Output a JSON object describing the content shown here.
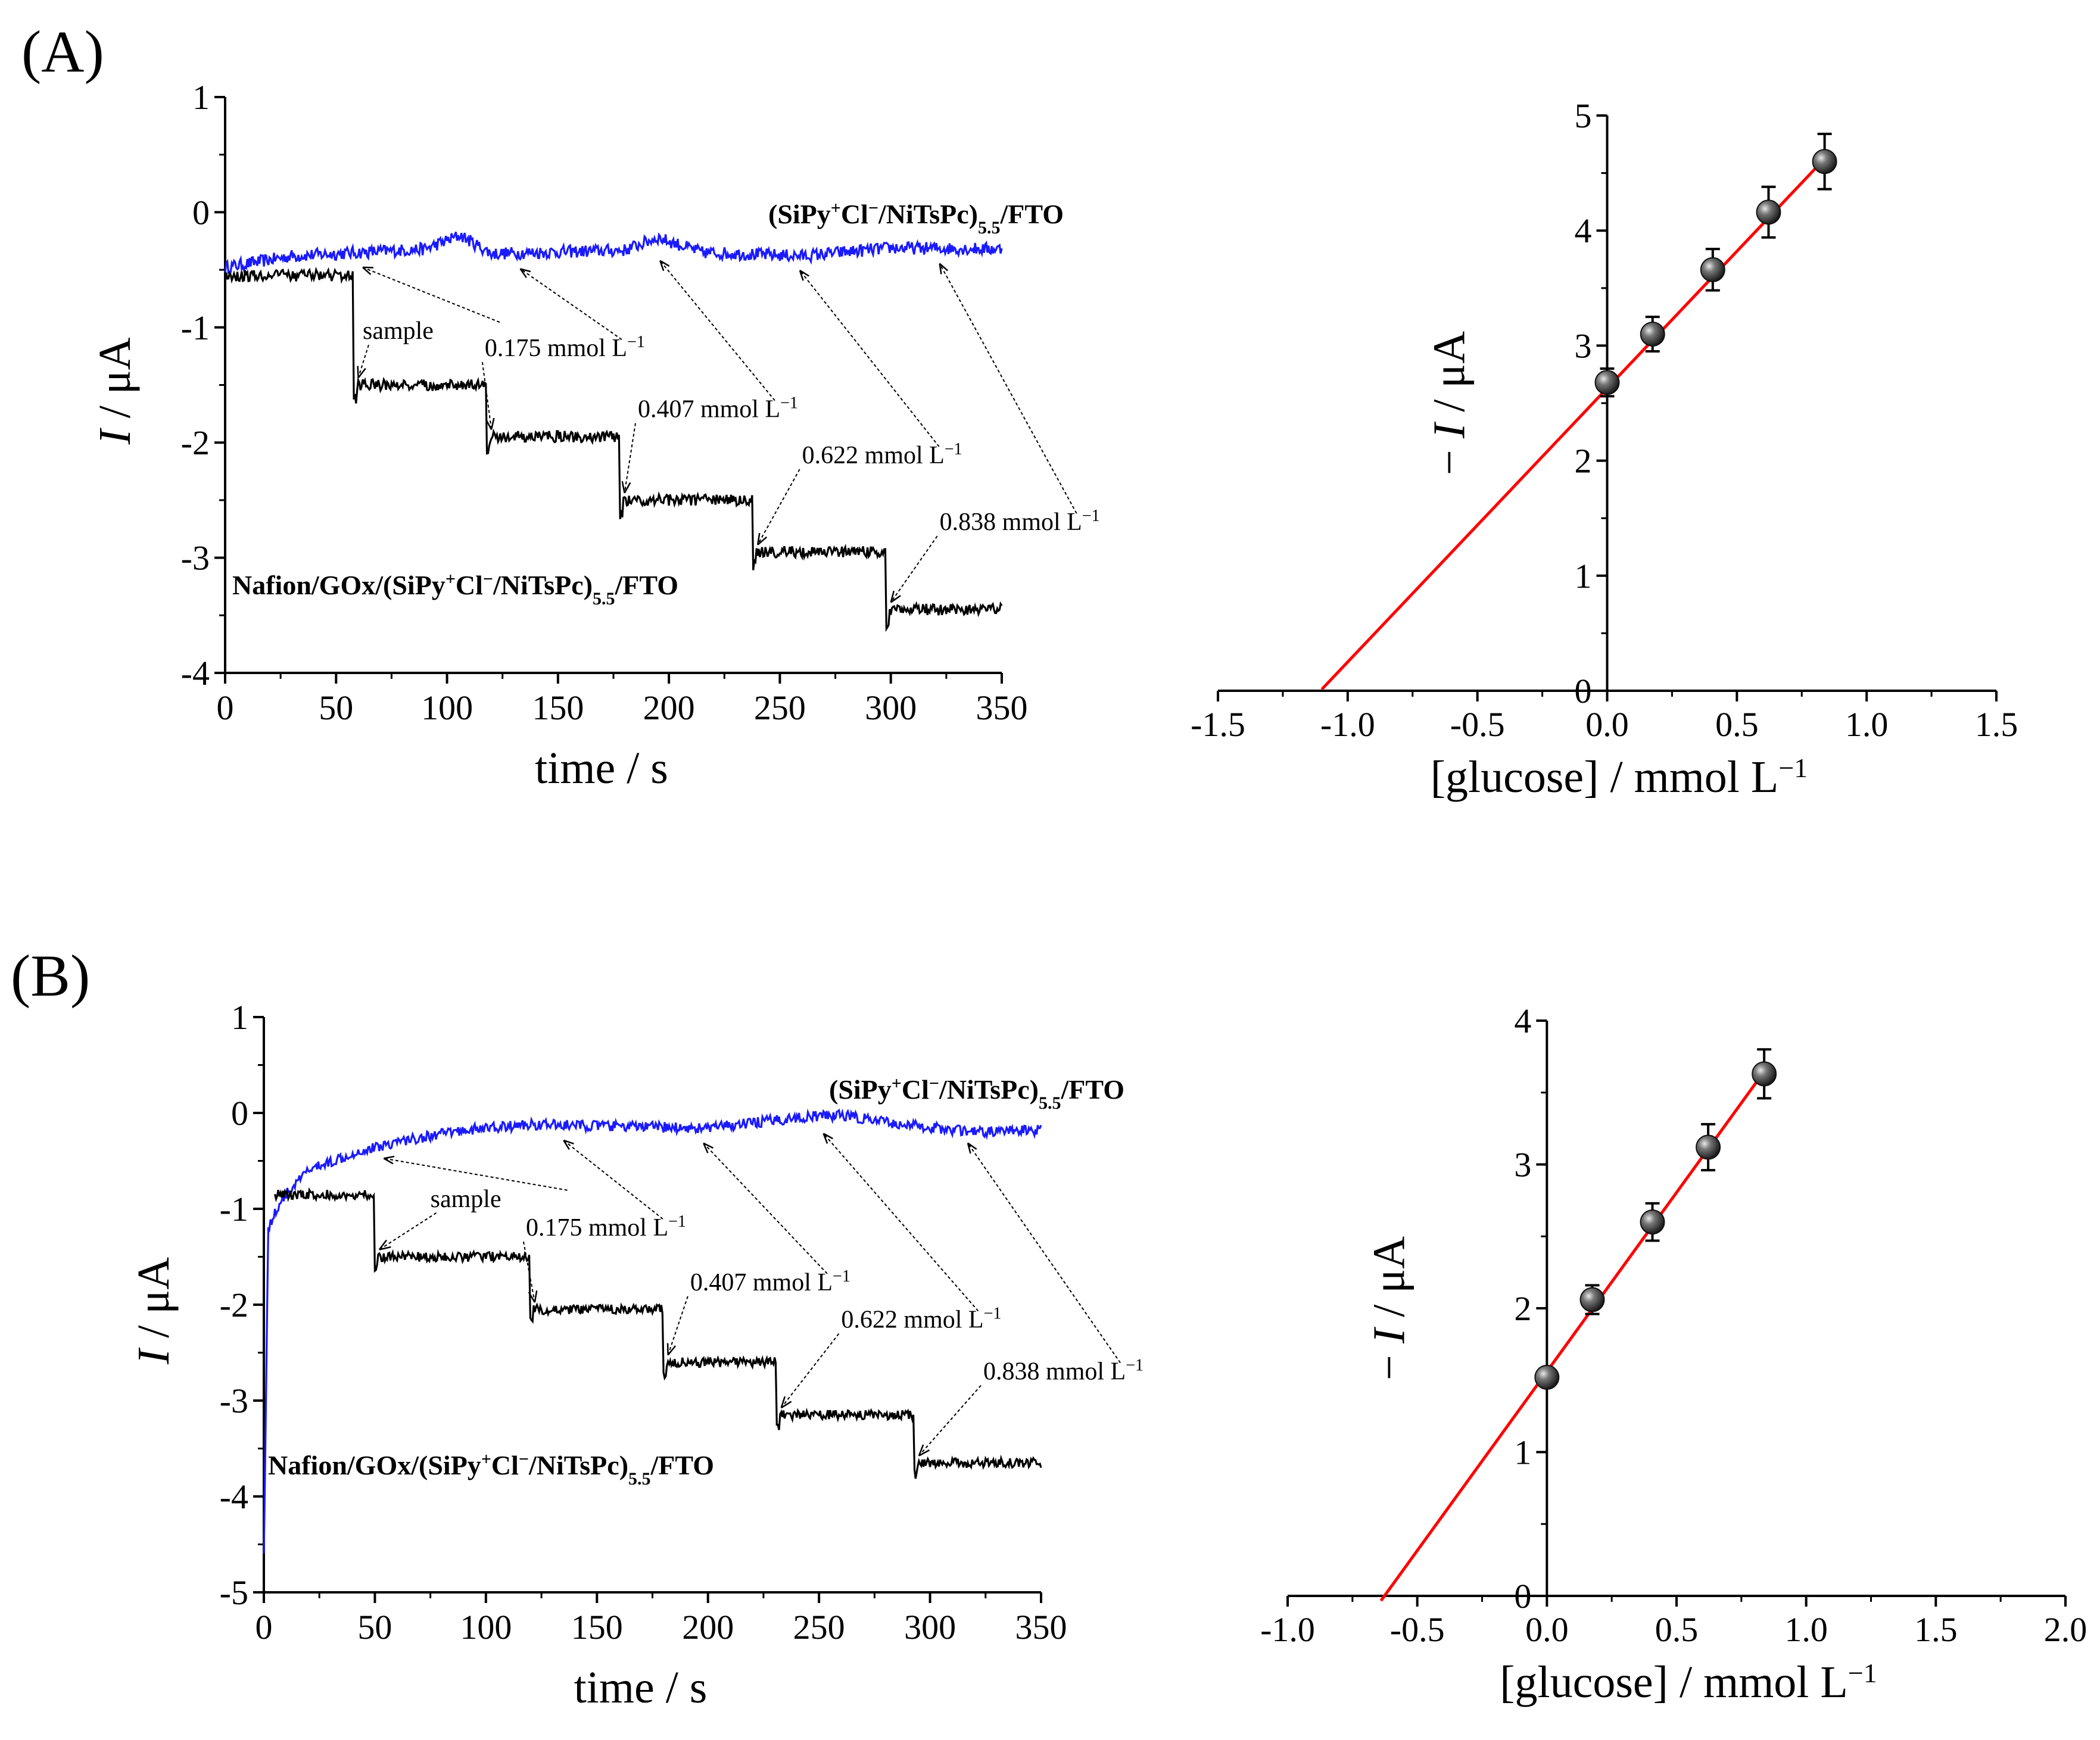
{
  "chart_data": [
    {
      "id": "A_amperometric",
      "panel": "(A)",
      "type": "line",
      "xlabel": "time / s",
      "ylabel": "I / μA",
      "xlim": [
        0,
        350
      ],
      "ylim": [
        -4,
        1
      ],
      "xticks": [
        "0",
        "50",
        "100",
        "150",
        "200",
        "250",
        "300",
        "350"
      ],
      "yticks": [
        "1",
        "0",
        "-1",
        "-2",
        "-3",
        "-4"
      ],
      "series": [
        {
          "name": "(SiPy+Cl−/NiTsPc)5.5/FTO",
          "label_parts": [
            "(SiPy",
            "+",
            "Cl",
            "−",
            "/NiTsPc)",
            "5.5",
            "/FTO"
          ],
          "color": "#1a1aff",
          "baseline": [
            [
              0,
              -0.48
            ],
            [
              30,
              -0.38
            ],
            [
              60,
              -0.35
            ],
            [
              90,
              -0.32
            ],
            [
              106,
              -0.2
            ],
            [
              120,
              -0.36
            ],
            [
              180,
              -0.33
            ],
            [
              195,
              -0.22
            ],
            [
              215,
              -0.35
            ],
            [
              260,
              -0.38
            ],
            [
              300,
              -0.31
            ],
            [
              350,
              -0.32
            ]
          ]
        },
        {
          "name": "Nafion/GOx/(SiPy+Cl−/NiTsPc)5.5/FTO",
          "label_parts": [
            "Nafion/GOx/(SiPy",
            "+",
            "Cl",
            "−",
            "/NiTsPc)",
            "5.5",
            "/FTO"
          ],
          "color": "#000000",
          "steps": [
            [
              0,
              -0.55
            ],
            [
              58,
              -1.5
            ],
            [
              118,
              -1.95
            ],
            [
              178,
              -2.5
            ],
            [
              238,
              -2.95
            ],
            [
              298,
              -3.45
            ],
            [
              350,
              -3.45
            ]
          ]
        }
      ],
      "annotations": [
        {
          "text": "sample",
          "sup": "",
          "x": 62,
          "y": -1.1
        },
        {
          "text": "0.175 mmol L",
          "sup": "−1",
          "x": 117,
          "y": -1.25
        },
        {
          "text": "0.407 mmol L",
          "sup": "−1",
          "x": 186,
          "y": -1.78
        },
        {
          "text": "0.622 mmol L",
          "sup": "−1",
          "x": 260,
          "y": -2.18
        },
        {
          "text": "0.838 mmol L",
          "sup": "−1",
          "x": 322,
          "y": -2.76
        }
      ]
    },
    {
      "id": "A_calibration",
      "type": "scatter",
      "xlabel": "[glucose] / mmol L",
      "xlabel_sup": "−1",
      "ylabel": "− I / μA",
      "xlim": [
        -1.5,
        1.5
      ],
      "ylim": [
        0,
        5
      ],
      "xticks": [
        "-1.5",
        "-1.0",
        "-0.5",
        "0.0",
        "0.5",
        "1.0",
        "1.5"
      ],
      "yticks": [
        "0",
        "1",
        "2",
        "3",
        "4",
        "5"
      ],
      "points": [
        {
          "x": 0.0,
          "y": 2.68,
          "err": 0.12
        },
        {
          "x": 0.175,
          "y": 3.1,
          "err": 0.15
        },
        {
          "x": 0.407,
          "y": 3.66,
          "err": 0.18
        },
        {
          "x": 0.622,
          "y": 4.16,
          "err": 0.22
        },
        {
          "x": 0.838,
          "y": 4.6,
          "err": 0.24
        }
      ],
      "fit": {
        "slope": 2.38,
        "intercept": 2.63,
        "x_range": [
          -1.1,
          0.84
        ],
        "color": "#ff0000"
      }
    },
    {
      "id": "B_amperometric",
      "panel": "(B)",
      "type": "line",
      "xlabel": "time / s",
      "ylabel": "I / μA",
      "xlim": [
        0,
        350
      ],
      "ylim": [
        -5,
        1
      ],
      "xticks": [
        "0",
        "50",
        "100",
        "150",
        "200",
        "250",
        "300",
        "350"
      ],
      "yticks": [
        "1",
        "0",
        "-1",
        "-2",
        "-3",
        "-4",
        "-5"
      ],
      "series": [
        {
          "name": "(SiPy+Cl−/NiTsPc)5.5/FTO",
          "label_parts": [
            "(SiPy",
            "+",
            "Cl",
            "−",
            "/NiTsPc)",
            "5.5",
            "/FTO"
          ],
          "color": "#1a1aff",
          "baseline": [
            [
              0,
              -4.6
            ],
            [
              2,
              -1.2
            ],
            [
              8,
              -0.9
            ],
            [
              20,
              -0.6
            ],
            [
              40,
              -0.42
            ],
            [
              60,
              -0.3
            ],
            [
              90,
              -0.18
            ],
            [
              120,
              -0.12
            ],
            [
              160,
              -0.14
            ],
            [
              200,
              -0.16
            ],
            [
              240,
              -0.05
            ],
            [
              260,
              -0.02
            ],
            [
              280,
              -0.1
            ],
            [
              320,
              -0.2
            ],
            [
              350,
              -0.18
            ]
          ]
        },
        {
          "name": "Nafion/GOx/(SiPy+Cl−/NiTsPc)5.5/FTO",
          "label_parts": [
            "Nafion/GOx/(SiPy",
            "+",
            "Cl",
            "−",
            "/NiTsPc)",
            "5.5",
            "/FTO"
          ],
          "color": "#000000",
          "steps": [
            [
              5,
              -0.85
            ],
            [
              50,
              -1.5
            ],
            [
              120,
              -2.05
            ],
            [
              180,
              -2.6
            ],
            [
              231,
              -3.15
            ],
            [
              293,
              -3.65
            ],
            [
              350,
              -3.65
            ]
          ]
        }
      ],
      "annotations": [
        {
          "text": "sample",
          "sup": "",
          "x": 75,
          "y": -0.98
        },
        {
          "text": "0.175 mmol L",
          "sup": "−1",
          "x": 118,
          "y": -1.28
        },
        {
          "text": "0.407 mmol L",
          "sup": "−1",
          "x": 192,
          "y": -1.85
        },
        {
          "text": "0.622 mmol L",
          "sup": "−1",
          "x": 260,
          "y": -2.24
        },
        {
          "text": "0.838 mmol L",
          "sup": "−1",
          "x": 324,
          "y": -2.78
        }
      ]
    },
    {
      "id": "B_calibration",
      "type": "scatter",
      "xlabel": "[glucose] / mmol L",
      "xlabel_sup": "−1",
      "ylabel": "− I / μA",
      "xlim": [
        -1.0,
        2.0
      ],
      "ylim": [
        0,
        4
      ],
      "xticks": [
        "-1.0",
        "-0.5",
        "0.0",
        "0.5",
        "1.0",
        "1.5",
        "2.0"
      ],
      "yticks": [
        "0",
        "1",
        "2",
        "3",
        "4"
      ],
      "points": [
        {
          "x": 0.0,
          "y": 1.52,
          "err": 0.05
        },
        {
          "x": 0.175,
          "y": 2.06,
          "err": 0.1
        },
        {
          "x": 0.407,
          "y": 2.6,
          "err": 0.13
        },
        {
          "x": 0.622,
          "y": 3.12,
          "err": 0.16
        },
        {
          "x": 0.838,
          "y": 3.63,
          "err": 0.17
        }
      ],
      "fit": {
        "slope": 2.49,
        "intercept": 1.56,
        "x_range": [
          -0.64,
          0.84
        ],
        "color": "#ff0000"
      }
    }
  ]
}
